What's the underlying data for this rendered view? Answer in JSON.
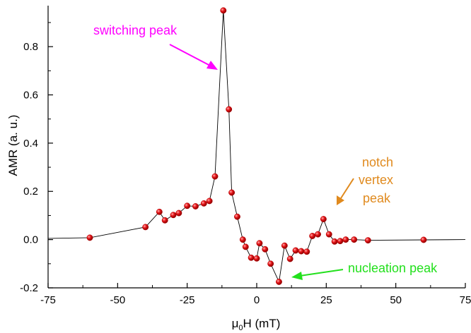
{
  "chart_data": {
    "type": "scatter",
    "xlabel": "μ0H (mT)",
    "xlabel_parts": {
      "mu": "μ",
      "sub": "0",
      "rest": "H (mT)"
    },
    "ylabel": "AMR (a. u.)",
    "xlim": [
      -75,
      75
    ],
    "ylim": [
      -0.2,
      0.97
    ],
    "x_ticks": [
      -75,
      -50,
      -25,
      0,
      25,
      50,
      75
    ],
    "x_tick_labels": [
      "-75",
      "-50",
      "-25",
      "0",
      "25",
      "50",
      "75"
    ],
    "y_ticks": [
      -0.2,
      0.0,
      0.2,
      0.4,
      0.6,
      0.8
    ],
    "y_tick_labels": [
      "-0.2",
      "0.0",
      "0.2",
      "0.4",
      "0.6",
      "0.8"
    ],
    "grid": false,
    "series": [
      {
        "color": "#e8161a",
        "line_color": "#000000",
        "x": [
          -75,
          -60,
          -40,
          -35,
          -33,
          -30,
          -28,
          -25,
          -22,
          -19,
          -17,
          -15,
          -12,
          -10,
          -9,
          -7,
          -5,
          -4,
          -2,
          0,
          1,
          3,
          5,
          8,
          10,
          12,
          14,
          16,
          18,
          20,
          22,
          24,
          26,
          28,
          30,
          32,
          35,
          40,
          60,
          75
        ],
        "y": [
          0.005,
          0.008,
          0.052,
          0.115,
          0.08,
          0.102,
          0.11,
          0.14,
          0.138,
          0.15,
          0.16,
          0.262,
          0.95,
          0.54,
          0.195,
          0.095,
          0.0,
          -0.03,
          -0.075,
          -0.078,
          -0.015,
          -0.04,
          -0.1,
          -0.175,
          -0.025,
          -0.08,
          -0.045,
          -0.048,
          -0.05,
          0.015,
          0.022,
          0.085,
          0.022,
          -0.008,
          -0.006,
          0.0,
          0.0,
          -0.003,
          -0.001,
          0.0
        ],
        "markers": [
          false,
          true,
          true,
          true,
          true,
          true,
          true,
          true,
          true,
          true,
          true,
          true,
          true,
          true,
          true,
          true,
          true,
          true,
          true,
          true,
          true,
          true,
          true,
          true,
          true,
          true,
          true,
          true,
          true,
          true,
          true,
          true,
          true,
          true,
          true,
          true,
          true,
          true,
          true,
          false
        ]
      }
    ],
    "annotations": [
      {
        "text": "switching peak",
        "color": "#ff00ff"
      },
      {
        "text": "notch",
        "color": "#e08a1e"
      },
      {
        "text": "vertex",
        "color": "#e08a1e"
      },
      {
        "text": "peak",
        "color": "#e08a1e"
      },
      {
        "text": "nucleation peak",
        "color": "#22e01c"
      }
    ]
  }
}
